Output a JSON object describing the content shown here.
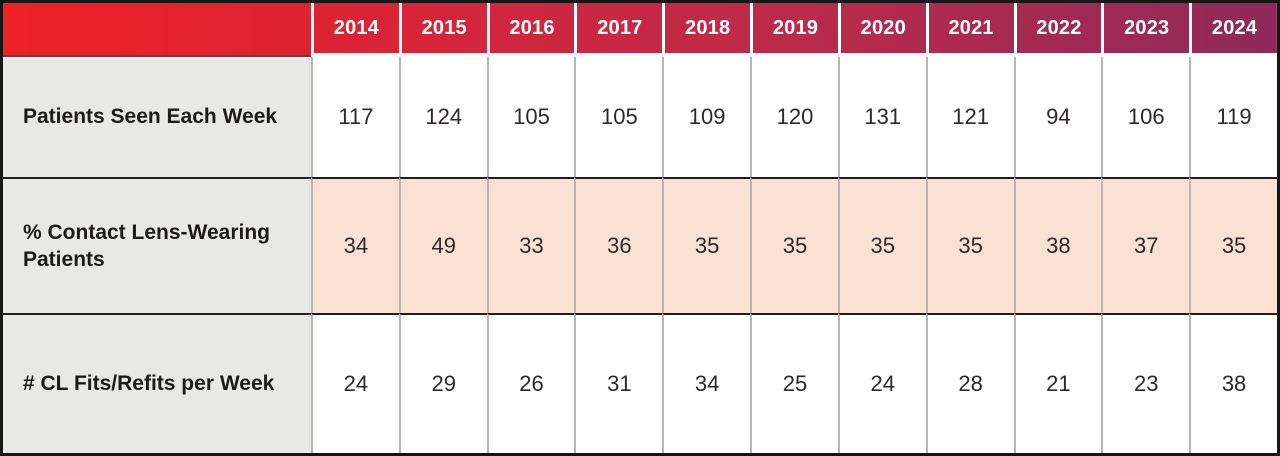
{
  "chart_data": {
    "type": "table",
    "title": "",
    "categories": [
      "2014",
      "2015",
      "2016",
      "2017",
      "2018",
      "2019",
      "2020",
      "2021",
      "2022",
      "2023",
      "2024"
    ],
    "series": [
      {
        "name": "Patients Seen Each Week",
        "values": [
          117,
          124,
          105,
          105,
          109,
          120,
          131,
          121,
          94,
          106,
          119
        ]
      },
      {
        "name": "% Contact Lens-Wearing Patients",
        "values": [
          34,
          49,
          33,
          36,
          35,
          35,
          35,
          35,
          38,
          37,
          35
        ]
      },
      {
        "name": "# CL Fits/Refits per Week",
        "values": [
          24,
          29,
          26,
          31,
          34,
          25,
          24,
          28,
          21,
          23,
          38
        ]
      }
    ],
    "layout": {
      "header_separator_color": "#ffffff",
      "grid_vertical_separator_color": "#b6b6b6",
      "row_separator_color": "#1e1e1e",
      "outer_border_color": "#161616"
    }
  },
  "colors": {
    "header_gradient_start": "#ee2127",
    "header_gradient_end": "#8e2959",
    "header_text": "#ffffff",
    "label_column_bg": "#e8e8e6",
    "highlight_row_bg": "#fbe1d3",
    "cell_text": "#2d292a",
    "label_text": "#1c1a1b"
  }
}
